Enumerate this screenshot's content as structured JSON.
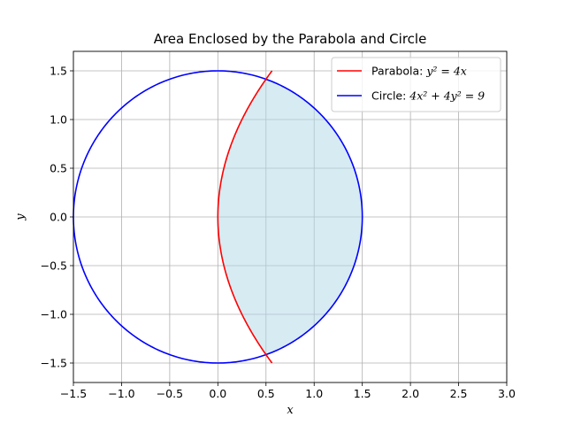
{
  "chart_data": {
    "type": "line",
    "title": "Area Enclosed by the Parabola and Circle",
    "xlabel": "x",
    "ylabel": "y",
    "xlim": [
      -1.5,
      3.0
    ],
    "ylim": [
      -1.7,
      1.7
    ],
    "xticks": [
      -1.5,
      -1.0,
      -0.5,
      0.0,
      0.5,
      1.0,
      1.5,
      2.0,
      2.5,
      3.0
    ],
    "xtick_labels": [
      "−1.5",
      "−1.0",
      "−0.5",
      "0.0",
      "0.5",
      "1.0",
      "1.5",
      "2.0",
      "2.5",
      "3.0"
    ],
    "yticks": [
      -1.5,
      -1.0,
      -0.5,
      0.0,
      0.5,
      1.0,
      1.5
    ],
    "ytick_labels": [
      "−1.5",
      "−1.0",
      "−0.5",
      "0.0",
      "0.5",
      "1.0",
      "1.5"
    ],
    "grid": true,
    "legend_position": "top-right",
    "series": [
      {
        "name": "Parabola: y² = 4x",
        "legend_prefix": "Parabola: ",
        "legend_math": "y² = 4x",
        "color": "#ff0000",
        "equation": "y^2 = 4x",
        "y_range": [
          -1.5,
          1.5
        ]
      },
      {
        "name": "Circle: 4x² + 4y² = 9",
        "legend_prefix": "Circle: ",
        "legend_math": "4x² + 4y² = 9",
        "color": "#0000ff",
        "equation": "4x^2 + 4y^2 = 9",
        "radius": 1.5
      }
    ],
    "shaded_region": {
      "description": "between parabola and right side of circle",
      "color": "#add8e6",
      "opacity": 0.5,
      "y_range": [
        -1.414,
        1.414
      ]
    }
  }
}
